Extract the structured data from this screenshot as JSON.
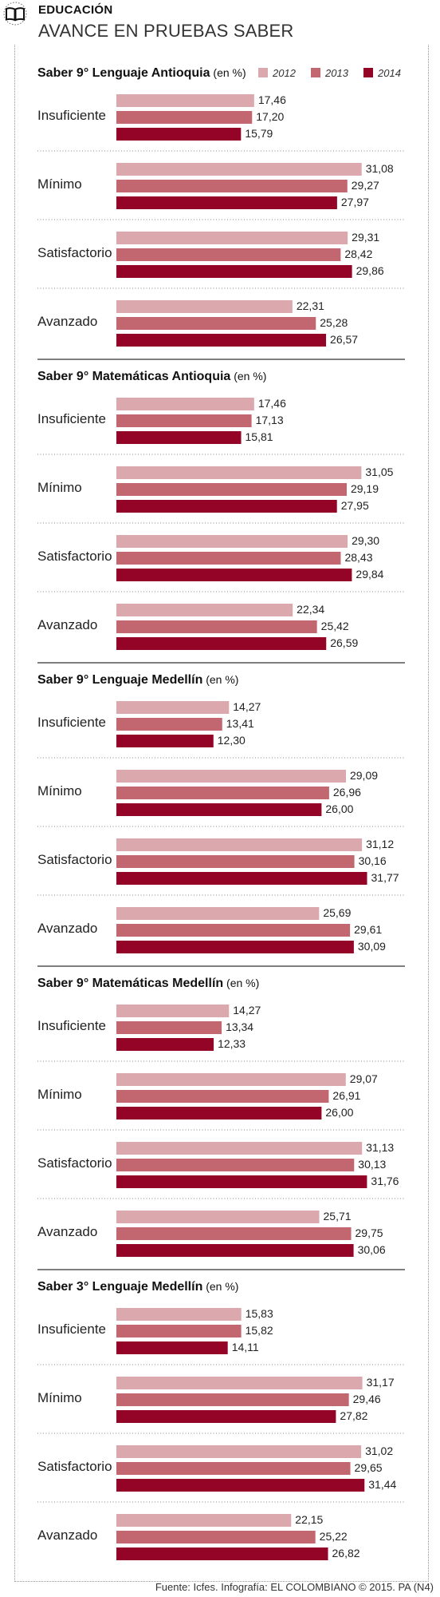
{
  "header": {
    "section": "EDUCACIÓN",
    "title": "AVANCE EN PRUEBAS SABER",
    "icon": "book-icon"
  },
  "legend": {
    "placement": "top-right",
    "items": [
      {
        "label": "2012",
        "color": "#dba8ad"
      },
      {
        "label": "2013",
        "color": "#c26670"
      },
      {
        "label": "2014",
        "color": "#940427"
      }
    ]
  },
  "source": "Fuente: Icfes. Infografía: EL COLOMBIANO © 2015. PA (N4)",
  "chart_data": [
    {
      "type": "bar",
      "orientation": "horizontal",
      "title": "Saber 9° Lenguaje Antioquia",
      "unit": "(en %)",
      "categories": [
        "Insuficiente",
        "Mínimo",
        "Satisfactorio",
        "Avanzado"
      ],
      "series": [
        {
          "name": "2012",
          "values": [
            "17,46",
            "31,08",
            "29,31",
            "22,31"
          ]
        },
        {
          "name": "2013",
          "values": [
            "17,20",
            "29,27",
            "28,42",
            "25,28"
          ]
        },
        {
          "name": "2014",
          "values": [
            "15,79",
            "27,97",
            "29,86",
            "26,57"
          ]
        }
      ]
    },
    {
      "type": "bar",
      "orientation": "horizontal",
      "title": "Saber 9° Matemáticas Antioquia",
      "unit": "(en %)",
      "categories": [
        "Insuficiente",
        "Mínimo",
        "Satisfactorio",
        "Avanzado"
      ],
      "series": [
        {
          "name": "2012",
          "values": [
            "17,46",
            "31,05",
            "29,30",
            "22,34"
          ]
        },
        {
          "name": "2013",
          "values": [
            "17,13",
            "29,19",
            "28,43",
            "25,42"
          ]
        },
        {
          "name": "2014",
          "values": [
            "15,81",
            "27,95",
            "29,84",
            "26,59"
          ]
        }
      ]
    },
    {
      "type": "bar",
      "orientation": "horizontal",
      "title": "Saber 9° Lenguaje Medellín",
      "unit": "(en %)",
      "categories": [
        "Insuficiente",
        "Mínimo",
        "Satisfactorio",
        "Avanzado"
      ],
      "series": [
        {
          "name": "2012",
          "values": [
            "14,27",
            "29,09",
            "31,12",
            "25,69"
          ]
        },
        {
          "name": "2013",
          "values": [
            "13,41",
            "26,96",
            "30,16",
            "29,61"
          ]
        },
        {
          "name": "2014",
          "values": [
            "12,30",
            "26,00",
            "31,77",
            "30,09"
          ]
        }
      ]
    },
    {
      "type": "bar",
      "orientation": "horizontal",
      "title": "Saber 9° Matemáticas Medellín",
      "unit": "(en %)",
      "categories": [
        "Insuficiente",
        "Mínimo",
        "Satisfactorio",
        "Avanzado"
      ],
      "series": [
        {
          "name": "2012",
          "values": [
            "14,27",
            "29,07",
            "31,13",
            "25,71"
          ]
        },
        {
          "name": "2013",
          "values": [
            "13,34",
            "26,91",
            "30,13",
            "29,75"
          ]
        },
        {
          "name": "2014",
          "values": [
            "12,33",
            "26,00",
            "31,76",
            "30,06"
          ]
        }
      ]
    },
    {
      "type": "bar",
      "orientation": "horizontal",
      "title": "Saber 3° Lenguaje Medellín",
      "unit": "(en %)",
      "categories": [
        "Insuficiente",
        "Mínimo",
        "Satisfactorio",
        "Avanzado"
      ],
      "series": [
        {
          "name": "2012",
          "values": [
            "15,83",
            "31,17",
            "31,02",
            "22,15"
          ]
        },
        {
          "name": "2013",
          "values": [
            "15,82",
            "29,46",
            "29,65",
            "25,22"
          ]
        },
        {
          "name": "2014",
          "values": [
            "14,11",
            "27,82",
            "31,44",
            "26,82"
          ]
        }
      ]
    }
  ]
}
